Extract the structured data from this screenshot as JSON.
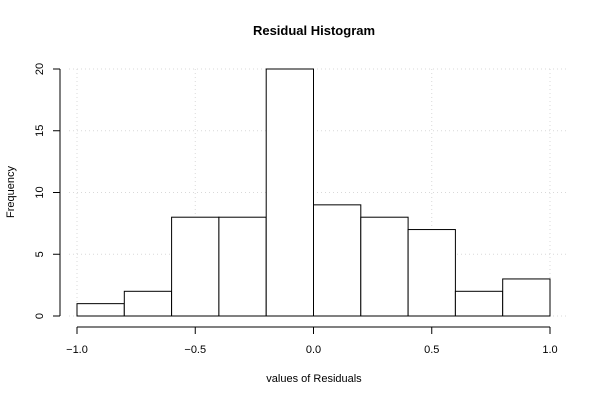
{
  "chart_data": {
    "type": "bar",
    "title": "Residual Histogram",
    "xlabel": "values of Residuals",
    "ylabel": "Frequency",
    "bin_edges": [
      -1.0,
      -0.8,
      -0.6,
      -0.4,
      -0.2,
      0.0,
      0.2,
      0.4,
      0.6,
      0.8,
      1.0
    ],
    "values": [
      1,
      2,
      8,
      8,
      20,
      9,
      8,
      7,
      2,
      3
    ],
    "xlim": [
      -1.0,
      1.0
    ],
    "ylim": [
      0,
      20
    ],
    "x_ticks": [
      -1.0,
      -0.5,
      0.0,
      0.5,
      1.0
    ],
    "x_tick_labels": [
      "−1.0",
      "−0.5",
      "0.0",
      "0.5",
      "1.0"
    ],
    "y_ticks": [
      0,
      5,
      10,
      15,
      20
    ],
    "y_tick_labels": [
      "0",
      "5",
      "10",
      "15",
      "20"
    ],
    "grid": true
  }
}
